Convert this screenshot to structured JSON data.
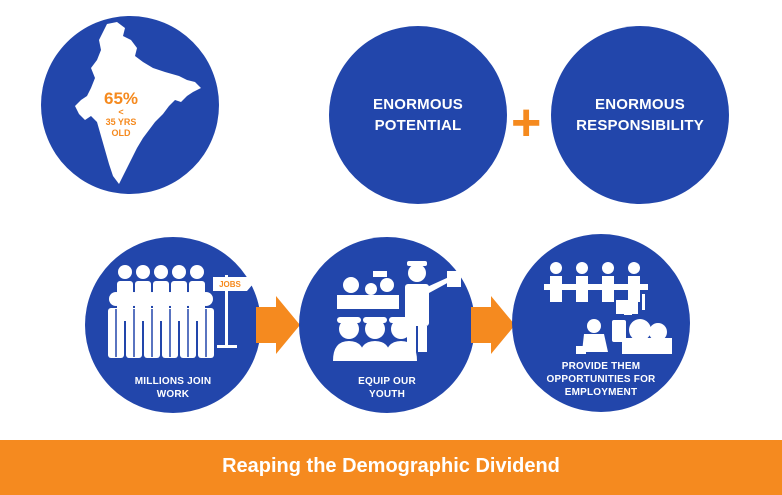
{
  "colors": {
    "circle_blue": "#2246ab",
    "accent_orange": "#f58a1f",
    "white": "#ffffff"
  },
  "india": {
    "percent": "65%",
    "less_than": "<",
    "age_line1": "35 YRS",
    "age_line2": "OLD"
  },
  "potential": {
    "line1": "ENORMOUS",
    "line2": "POTENTIAL"
  },
  "plus_sign": "+",
  "responsibility": {
    "line1": "ENORMOUS",
    "line2": "RESPONSIBILITY"
  },
  "steps": [
    {
      "line1": "MILLIONS JOIN",
      "line2": "WORK",
      "icon": "crowd-icon"
    },
    {
      "line1": "EQUIP OUR",
      "line2": "YOUTH",
      "icon": "trainer-icon"
    },
    {
      "line1": "PROVIDE THEM",
      "line2": "OPPORTUNITIES FOR",
      "line3": "EMPLOYMENT",
      "icon": "workers-icon"
    }
  ],
  "jobs_sign": "JOBS",
  "banner": {
    "title": "Reaping the Demographic Dividend"
  }
}
